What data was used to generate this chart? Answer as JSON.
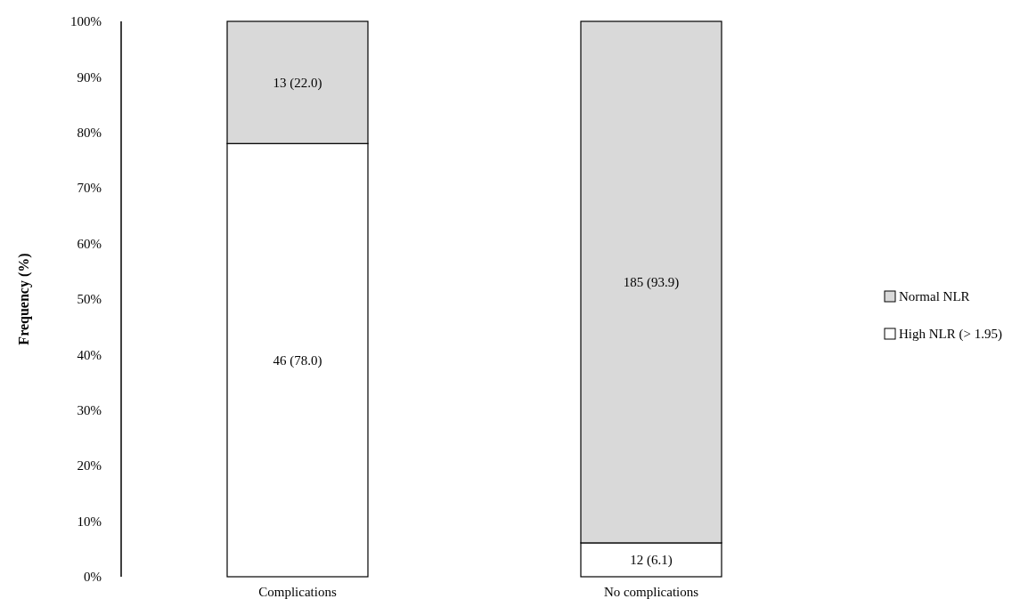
{
  "chart_data": {
    "type": "bar",
    "stacked": true,
    "ylabel": "Frequency (%)",
    "categories": [
      "Complications",
      "No complications"
    ],
    "series": [
      {
        "name": "High NLR (> 1.95)",
        "color": "#ffffff",
        "values": [
          78.0,
          6.1
        ],
        "value_labels": [
          "46 (78.0)",
          "12 (6.1)"
        ]
      },
      {
        "name": "Normal NLR",
        "color": "#d9d9d9",
        "values": [
          22.0,
          93.9
        ],
        "value_labels": [
          "13 (22.0)",
          "185 (93.9)"
        ]
      }
    ],
    "ylim": [
      0,
      100
    ],
    "yticks": [
      {
        "value": 0,
        "label": "0%"
      },
      {
        "value": 10,
        "label": "10%"
      },
      {
        "value": 20,
        "label": "20%"
      },
      {
        "value": 30,
        "label": "30%"
      },
      {
        "value": 40,
        "label": "40%"
      },
      {
        "value": 50,
        "label": "50%"
      },
      {
        "value": 60,
        "label": "60%"
      },
      {
        "value": 70,
        "label": "70%"
      },
      {
        "value": 80,
        "label": "80%"
      },
      {
        "value": 90,
        "label": "90%"
      },
      {
        "value": 100,
        "label": "100%"
      }
    ],
    "grid": false,
    "legend": "right"
  }
}
